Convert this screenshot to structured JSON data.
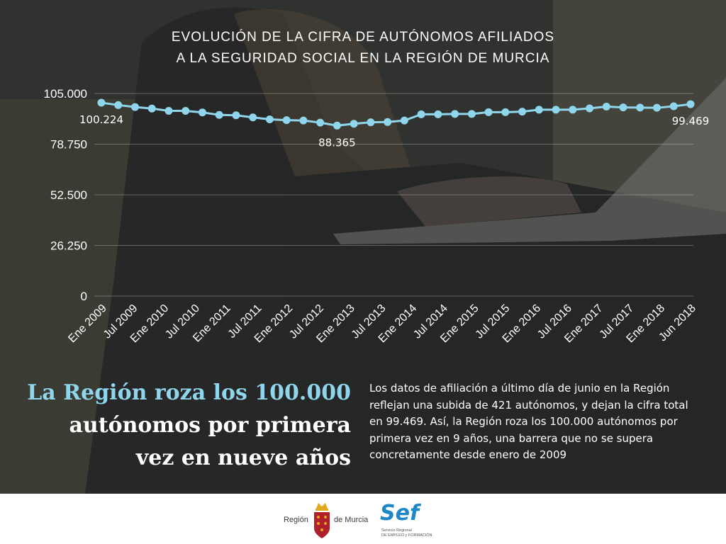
{
  "chart_data": {
    "type": "line",
    "title_line1": "EVOLUCIÓN DE LA CIFRA DE AUTÓNOMOS AFILIADOS",
    "title_line2": "A LA SEGURIDAD SOCIAL EN LA REGIÓN DE MURCIA",
    "ylim": [
      0,
      105000
    ],
    "y_ticks": [
      0,
      26250,
      52500,
      78750,
      105000
    ],
    "y_tick_labels": [
      "0",
      "26.250",
      "52.500",
      "78.750",
      "105.000"
    ],
    "x_tick_labels": [
      "Ene 2009",
      "Jul 2009",
      "Ene 2010",
      "Jul 2010",
      "Ene 2011",
      "Jul 2011",
      "Ene 2012",
      "Jul 2012",
      "Ene 2013",
      "Jul 2013",
      "Ene 2014",
      "Jul 2014",
      "Ene 2015",
      "Jul 2015",
      "Ene 2016",
      "Jul 2016",
      "Ene 2017",
      "Jul 2017",
      "Ene 2018",
      "Jun 2018"
    ],
    "values": [
      100224,
      99000,
      98000,
      97200,
      96000,
      96000,
      95200,
      93900,
      93700,
      92600,
      91600,
      91200,
      91000,
      89900,
      88365,
      89300,
      90100,
      90200,
      91000,
      94200,
      94200,
      94400,
      94400,
      95300,
      95300,
      95600,
      96600,
      96600,
      96600,
      97300,
      98200,
      97800,
      97700,
      97600,
      98400,
      99469
    ],
    "annotations": [
      {
        "index": 0,
        "label": "100.224"
      },
      {
        "index": 14,
        "label": "88.365"
      },
      {
        "index": 35,
        "label": "99.469"
      }
    ],
    "grid": true,
    "line_color": "#8fd6ec"
  },
  "headline": {
    "line1": "La Región roza los 100.000",
    "line2": "autónomos por primera",
    "line3": "vez en nueve años"
  },
  "body_text": "Los datos de afiliación a último día de junio en la Región reflejan una subida de 421 autónomos, y dejan la cifra total en 99.469. Así, la Región roza los 100.000 autónomos por primera vez en 9 años, una barrera que no se supera concretamente desde enero de 2009",
  "footer": {
    "region_logo": {
      "left_text": "Región",
      "right_text": "de Murcia"
    },
    "sef_logo": {
      "word": "Sef",
      "sub1": "Servicio Regional",
      "sub2": "DE EMPLEO y FORMACIÓN"
    }
  },
  "colors": {
    "accent": "#8fd6ec",
    "sef_blue": "#1f87c8",
    "crest_red": "#b0202a",
    "crest_gold": "#e0a81c"
  }
}
